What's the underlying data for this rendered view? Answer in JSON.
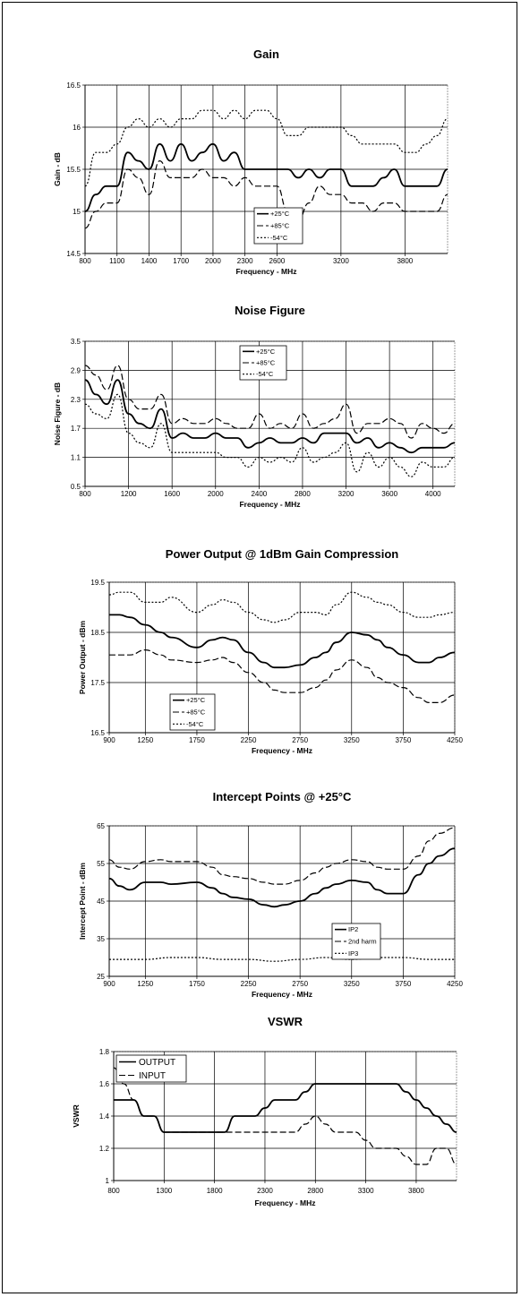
{
  "chart_data": [
    {
      "type": "line",
      "title": "Gain",
      "xlabel": "Frequency - MHz",
      "ylabel": "Gain - dB",
      "xlim": [
        800,
        4200
      ],
      "ylim": [
        14.5,
        16.5
      ],
      "x_ticks": [
        800,
        1100,
        1400,
        1700,
        2000,
        2300,
        2600,
        3200,
        3800
      ],
      "y_ticks": [
        "14.5",
        "15",
        "15.5",
        "16",
        "16.5"
      ],
      "grid": true,
      "legend_position": "bottom-center",
      "series": [
        {
          "name": "+25°C",
          "style": "solid",
          "x": [
            800,
            900,
            1000,
            1100,
            1200,
            1300,
            1400,
            1500,
            1600,
            1700,
            1800,
            1900,
            2000,
            2100,
            2200,
            2300,
            2400,
            2500,
            2600,
            2700,
            2800,
            2900,
            3000,
            3100,
            3200,
            3300,
            3400,
            3500,
            3600,
            3700,
            3800,
            3900,
            4000,
            4100,
            4200
          ],
          "y": [
            15.0,
            15.2,
            15.3,
            15.3,
            15.7,
            15.6,
            15.5,
            15.8,
            15.6,
            15.8,
            15.6,
            15.7,
            15.8,
            15.6,
            15.7,
            15.5,
            15.5,
            15.5,
            15.5,
            15.5,
            15.4,
            15.5,
            15.4,
            15.5,
            15.5,
            15.3,
            15.3,
            15.3,
            15.4,
            15.5,
            15.3,
            15.3,
            15.3,
            15.3,
            15.5
          ]
        },
        {
          "name": "+85°C",
          "style": "dashed",
          "x": [
            800,
            900,
            1000,
            1100,
            1200,
            1300,
            1400,
            1500,
            1600,
            1700,
            1800,
            1900,
            2000,
            2100,
            2200,
            2300,
            2400,
            2500,
            2600,
            2700,
            2800,
            2900,
            3000,
            3100,
            3200,
            3300,
            3400,
            3500,
            3600,
            3700,
            3800,
            3900,
            4000,
            4100,
            4200
          ],
          "y": [
            14.8,
            15.0,
            15.1,
            15.1,
            15.5,
            15.4,
            15.2,
            15.6,
            15.4,
            15.4,
            15.4,
            15.5,
            15.4,
            15.4,
            15.3,
            15.4,
            15.3,
            15.3,
            15.3,
            15.0,
            14.9,
            15.1,
            15.3,
            15.2,
            15.2,
            15.1,
            15.1,
            15.0,
            15.1,
            15.1,
            15.0,
            15.0,
            15.0,
            15.0,
            15.2
          ]
        },
        {
          "name": "-54°C",
          "style": "dotted",
          "x": [
            800,
            900,
            1000,
            1100,
            1200,
            1300,
            1400,
            1500,
            1600,
            1700,
            1800,
            1900,
            2000,
            2100,
            2200,
            2300,
            2400,
            2500,
            2600,
            2700,
            2800,
            2900,
            3000,
            3100,
            3200,
            3300,
            3400,
            3500,
            3600,
            3700,
            3800,
            3900,
            4000,
            4100,
            4200
          ],
          "y": [
            15.3,
            15.7,
            15.7,
            15.8,
            16.0,
            16.1,
            16.0,
            16.1,
            16.0,
            16.1,
            16.1,
            16.2,
            16.2,
            16.1,
            16.2,
            16.1,
            16.2,
            16.2,
            16.1,
            15.9,
            15.9,
            16.0,
            16.0,
            16.0,
            16.0,
            15.9,
            15.8,
            15.8,
            15.8,
            15.8,
            15.7,
            15.7,
            15.8,
            15.9,
            16.1
          ]
        }
      ]
    },
    {
      "type": "line",
      "title": "Noise Figure",
      "xlabel": "Frequency - MHz",
      "ylabel": "Noise Figure - dB",
      "xlim": [
        800,
        4200
      ],
      "ylim": [
        0.5,
        3.5
      ],
      "x_ticks": [
        800,
        1200,
        1600,
        2000,
        2400,
        2800,
        3200,
        3600,
        4000
      ],
      "y_ticks": [
        "0.5",
        "1.1",
        "1.7",
        "2.3",
        "2.9",
        "3.5"
      ],
      "grid": true,
      "legend_position": "top-center",
      "series": [
        {
          "name": "+25°C",
          "style": "solid",
          "x": [
            800,
            900,
            1000,
            1100,
            1200,
            1300,
            1400,
            1500,
            1600,
            1700,
            1800,
            1900,
            2000,
            2100,
            2200,
            2300,
            2400,
            2500,
            2600,
            2700,
            2800,
            2900,
            3000,
            3100,
            3200,
            3300,
            3400,
            3500,
            3600,
            3700,
            3800,
            3900,
            4000,
            4100,
            4200
          ],
          "y": [
            2.7,
            2.4,
            2.2,
            2.7,
            2.0,
            1.8,
            1.7,
            2.1,
            1.5,
            1.6,
            1.5,
            1.5,
            1.6,
            1.5,
            1.5,
            1.3,
            1.4,
            1.5,
            1.4,
            1.4,
            1.5,
            1.4,
            1.6,
            1.6,
            1.6,
            1.4,
            1.5,
            1.3,
            1.4,
            1.3,
            1.2,
            1.3,
            1.3,
            1.3,
            1.4
          ]
        },
        {
          "name": "+85°C",
          "style": "dashed",
          "x": [
            800,
            900,
            1000,
            1100,
            1200,
            1300,
            1400,
            1500,
            1600,
            1700,
            1800,
            1900,
            2000,
            2100,
            2200,
            2300,
            2400,
            2500,
            2600,
            2700,
            2800,
            2900,
            3000,
            3100,
            3200,
            3300,
            3400,
            3500,
            3600,
            3700,
            3800,
            3900,
            4000,
            4100,
            4200
          ],
          "y": [
            3.0,
            2.8,
            2.5,
            3.0,
            2.3,
            2.1,
            2.1,
            2.4,
            1.8,
            1.9,
            1.8,
            1.8,
            1.9,
            1.8,
            1.7,
            1.7,
            2.0,
            1.7,
            1.8,
            1.7,
            2.0,
            1.7,
            1.8,
            1.9,
            2.2,
            1.6,
            1.8,
            1.8,
            1.9,
            1.8,
            1.5,
            1.8,
            1.7,
            1.6,
            1.8
          ]
        },
        {
          "name": "-54°C",
          "style": "dotted",
          "x": [
            800,
            900,
            1000,
            1100,
            1200,
            1300,
            1400,
            1500,
            1600,
            1700,
            1800,
            1900,
            2000,
            2100,
            2200,
            2300,
            2400,
            2500,
            2600,
            2700,
            2800,
            2900,
            3000,
            3100,
            3200,
            3300,
            3400,
            3500,
            3600,
            3700,
            3800,
            3900,
            4000,
            4100,
            4200
          ],
          "y": [
            2.2,
            2.0,
            1.9,
            2.4,
            1.6,
            1.4,
            1.3,
            1.8,
            1.2,
            1.2,
            1.2,
            1.2,
            1.2,
            1.1,
            1.1,
            0.9,
            1.1,
            1.0,
            1.1,
            1.0,
            1.3,
            1.0,
            1.1,
            1.2,
            1.4,
            0.8,
            1.2,
            0.9,
            1.1,
            0.9,
            0.7,
            1.0,
            0.9,
            0.9,
            1.1
          ]
        }
      ]
    },
    {
      "type": "line",
      "title": "Power Output @ 1dBm Gain Compression",
      "xlabel": "Frequency - MHz",
      "ylabel": "Power Output - dBm",
      "xlim": [
        900,
        4250
      ],
      "ylim": [
        16.5,
        19.5
      ],
      "x_ticks": [
        900,
        1250,
        1750,
        2250,
        2750,
        3250,
        3750,
        4250
      ],
      "y_ticks": [
        "16.5",
        "17.5",
        "18.5",
        "19.5"
      ],
      "grid": true,
      "legend_position": "bottom-left",
      "series": [
        {
          "name": "+25°C",
          "style": "solid",
          "x": [
            900,
            1000,
            1100,
            1250,
            1400,
            1500,
            1750,
            1900,
            2000,
            2100,
            2250,
            2400,
            2500,
            2600,
            2750,
            2900,
            3000,
            3100,
            3250,
            3400,
            3500,
            3600,
            3750,
            3900,
            4000,
            4100,
            4250
          ],
          "y": [
            18.85,
            18.85,
            18.8,
            18.65,
            18.5,
            18.4,
            18.2,
            18.35,
            18.4,
            18.35,
            18.1,
            17.9,
            17.8,
            17.8,
            17.85,
            18.0,
            18.1,
            18.3,
            18.5,
            18.45,
            18.35,
            18.2,
            18.05,
            17.9,
            17.9,
            18.0,
            18.1
          ]
        },
        {
          "name": "+85°C",
          "style": "dashed",
          "x": [
            900,
            1000,
            1100,
            1250,
            1400,
            1500,
            1750,
            1900,
            2000,
            2100,
            2250,
            2400,
            2500,
            2600,
            2750,
            2900,
            3000,
            3100,
            3250,
            3400,
            3500,
            3600,
            3750,
            3900,
            4000,
            4100,
            4250
          ],
          "y": [
            18.05,
            18.05,
            18.05,
            18.15,
            18.05,
            17.95,
            17.9,
            17.95,
            18.0,
            17.9,
            17.7,
            17.5,
            17.35,
            17.3,
            17.3,
            17.4,
            17.55,
            17.75,
            17.95,
            17.8,
            17.6,
            17.5,
            17.4,
            17.2,
            17.1,
            17.1,
            17.25
          ]
        },
        {
          "name": "-54°C",
          "style": "dotted",
          "x": [
            900,
            1000,
            1100,
            1250,
            1400,
            1500,
            1750,
            1900,
            2000,
            2100,
            2250,
            2400,
            2500,
            2600,
            2750,
            2900,
            3000,
            3100,
            3250,
            3400,
            3500,
            3600,
            3750,
            3900,
            4000,
            4100,
            4250
          ],
          "y": [
            19.25,
            19.3,
            19.3,
            19.1,
            19.1,
            19.2,
            18.9,
            19.05,
            19.15,
            19.1,
            18.9,
            18.75,
            18.7,
            18.75,
            18.9,
            18.9,
            18.85,
            19.05,
            19.3,
            19.2,
            19.1,
            19.05,
            18.9,
            18.8,
            18.8,
            18.85,
            18.9
          ]
        }
      ]
    },
    {
      "type": "line",
      "title": "Intercept Points @ +25°C",
      "xlabel": "Frequency - MHz",
      "ylabel": "Intercept Point - dBm",
      "xlim": [
        900,
        4250
      ],
      "ylim": [
        25,
        65
      ],
      "x_ticks": [
        900,
        1250,
        1750,
        2250,
        2750,
        3250,
        3750,
        4250
      ],
      "y_ticks": [
        "25",
        "35",
        "45",
        "55",
        "65"
      ],
      "grid": true,
      "legend_position": "right",
      "series": [
        {
          "name": "IP2",
          "style": "solid",
          "x": [
            900,
            1000,
            1100,
            1250,
            1400,
            1500,
            1750,
            1900,
            2000,
            2100,
            2250,
            2400,
            2500,
            2600,
            2750,
            2900,
            3000,
            3100,
            3250,
            3400,
            3500,
            3600,
            3750,
            3900,
            4000,
            4100,
            4250
          ],
          "y": [
            51.0,
            49.0,
            48.0,
            50.0,
            50.0,
            49.5,
            50.0,
            48.5,
            47.0,
            46.0,
            45.5,
            44.0,
            43.5,
            44.0,
            45.0,
            47.0,
            48.5,
            49.5,
            50.5,
            50.0,
            48.0,
            47.0,
            47.0,
            52.0,
            55.0,
            57.0,
            59.0
          ]
        },
        {
          "name": "2nd harm",
          "style": "dashed",
          "x": [
            900,
            1000,
            1100,
            1250,
            1400,
            1500,
            1750,
            1900,
            2000,
            2100,
            2250,
            2400,
            2500,
            2600,
            2750,
            2900,
            3000,
            3100,
            3250,
            3400,
            3500,
            3600,
            3750,
            3900,
            4000,
            4100,
            4250
          ],
          "y": [
            56.0,
            54.0,
            53.5,
            55.5,
            56.0,
            55.5,
            55.5,
            54.0,
            52.0,
            51.5,
            51.0,
            50.0,
            49.5,
            49.5,
            50.5,
            52.5,
            54.0,
            55.0,
            56.0,
            55.5,
            54.0,
            53.5,
            53.5,
            57.0,
            61.0,
            63.0,
            64.5
          ]
        },
        {
          "name": "IP3",
          "style": "dotted",
          "x": [
            900,
            1250,
            1500,
            1750,
            2000,
            2250,
            2500,
            2750,
            3000,
            3250,
            3500,
            3750,
            4000,
            4250
          ],
          "y": [
            29.5,
            29.5,
            30.0,
            30.0,
            29.5,
            29.5,
            29.0,
            29.5,
            30.0,
            29.5,
            30.0,
            30.0,
            29.5,
            29.5
          ]
        }
      ]
    },
    {
      "type": "line",
      "title": "VSWR",
      "xlabel": "Frequency - MHz",
      "ylabel": "VSWR",
      "xlim": [
        800,
        4200
      ],
      "ylim": [
        1,
        1.8
      ],
      "x_ticks": [
        800,
        1300,
        1800,
        2300,
        2800,
        3300,
        3800
      ],
      "y_ticks": [
        "1",
        "1.2",
        "1.4",
        "1.6",
        "1.8"
      ],
      "grid": true,
      "legend_position": "top-left",
      "series": [
        {
          "name": "OUTPUT",
          "style": "solid",
          "x": [
            800,
            1000,
            1100,
            1200,
            1300,
            1400,
            1500,
            1600,
            1700,
            1800,
            1900,
            2000,
            2100,
            2200,
            2300,
            2400,
            2500,
            2600,
            2700,
            2800,
            2900,
            3000,
            3100,
            3200,
            3300,
            3400,
            3500,
            3600,
            3700,
            3800,
            3900,
            4000,
            4100,
            4200
          ],
          "y": [
            1.5,
            1.5,
            1.4,
            1.4,
            1.3,
            1.3,
            1.3,
            1.3,
            1.3,
            1.3,
            1.3,
            1.4,
            1.4,
            1.4,
            1.45,
            1.5,
            1.5,
            1.5,
            1.55,
            1.6,
            1.6,
            1.6,
            1.6,
            1.6,
            1.6,
            1.6,
            1.6,
            1.6,
            1.55,
            1.5,
            1.45,
            1.4,
            1.35,
            1.3
          ]
        },
        {
          "name": "INPUT",
          "style": "dashed",
          "x": [
            800,
            900,
            1000,
            1100,
            1200,
            1300,
            1400,
            1500,
            1600,
            1700,
            1800,
            1900,
            2000,
            2100,
            2200,
            2300,
            2400,
            2500,
            2600,
            2700,
            2800,
            2900,
            3000,
            3100,
            3200,
            3300,
            3400,
            3500,
            3600,
            3700,
            3800,
            3900,
            4000,
            4100,
            4200
          ],
          "y": [
            1.7,
            1.6,
            1.5,
            1.4,
            1.4,
            1.3,
            1.3,
            1.3,
            1.3,
            1.3,
            1.3,
            1.3,
            1.3,
            1.3,
            1.3,
            1.3,
            1.3,
            1.3,
            1.3,
            1.35,
            1.4,
            1.35,
            1.3,
            1.3,
            1.3,
            1.25,
            1.2,
            1.2,
            1.2,
            1.15,
            1.1,
            1.1,
            1.2,
            1.2,
            1.1
          ]
        }
      ]
    }
  ]
}
